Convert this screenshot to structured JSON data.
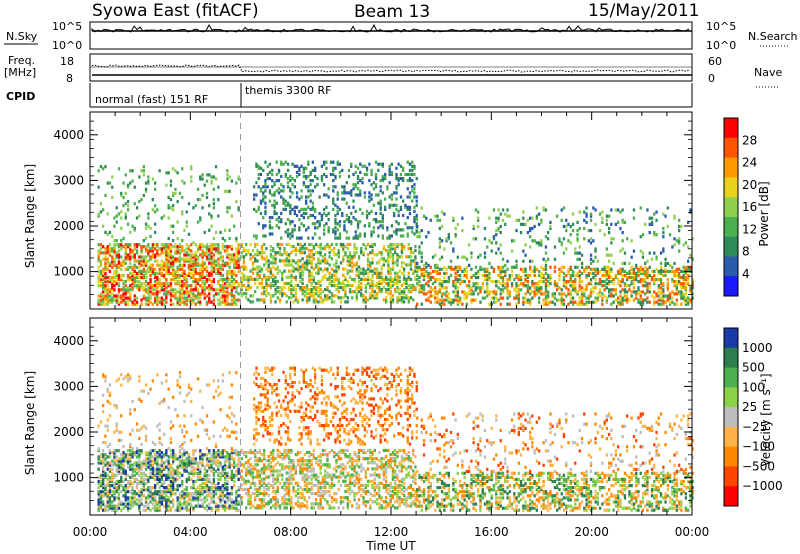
{
  "header": {
    "title": "Syowa East (fitACF)",
    "beam": "Beam 13",
    "date": "15/May/2011"
  },
  "nsky_panel": {
    "left_label": "N.Sky",
    "left_ticks": [
      "10^5",
      "10^0"
    ],
    "right_ticks": [
      "10^5",
      "10^0"
    ],
    "right_label": "N.Search"
  },
  "freq_panel": {
    "left_label": "Freq.",
    "left_unit": "[MHz]",
    "left_ticks": [
      "18",
      "8"
    ],
    "right_ticks": [
      "60",
      "0"
    ],
    "right_label": "Nave"
  },
  "cpid_panel": {
    "label": "CPID",
    "modes": [
      "normal (fast) 151 RF",
      "themis 3300 RF"
    ]
  },
  "chart_data": [
    {
      "type": "heatmap",
      "name": "power",
      "ylabel": "Slant Range [km]",
      "xlabel": "Time UT",
      "x_ticks": [
        "00:00",
        "04:00",
        "08:00",
        "12:00",
        "16:00",
        "20:00",
        "00:00"
      ],
      "x_range_hours": [
        0,
        24
      ],
      "y_ticks": [
        1000,
        2000,
        3000,
        4000
      ],
      "ylim": [
        180,
        4500
      ],
      "colorbar": {
        "label": "Power [dB]",
        "ticks": [
          "4",
          "8",
          "12",
          "16",
          "20",
          "24",
          "28"
        ],
        "range": [
          0,
          30
        ],
        "colors": [
          "#1a1aff",
          "#2a5caa",
          "#2e8b57",
          "#4caf50",
          "#8fd14f",
          "#e8d21e",
          "#ff9900",
          "#ff5500",
          "#ff0000"
        ]
      },
      "mode_change_hour": 6
    },
    {
      "type": "heatmap",
      "name": "velocity",
      "ylabel": "Slant Range [km]",
      "xlabel": "Time UT",
      "x_ticks": [
        "00:00",
        "04:00",
        "08:00",
        "12:00",
        "16:00",
        "20:00",
        "00:00"
      ],
      "x_range_hours": [
        0,
        24
      ],
      "y_ticks": [
        1000,
        2000,
        3000,
        4000
      ],
      "ylim": [
        180,
        4500
      ],
      "colorbar": {
        "label": "Velocity [m s⁻¹]",
        "ticks": [
          "1000",
          "500",
          "100",
          "25",
          "−25",
          "−100",
          "−500",
          "−1000"
        ],
        "colors": [
          "#1a3aa8",
          "#2e7d4f",
          "#4caf50",
          "#8cd14a",
          "#bdbdbd",
          "#ffb347",
          "#ff8800",
          "#ff4400",
          "#ff0000"
        ]
      },
      "mode_change_hour": 6
    }
  ]
}
